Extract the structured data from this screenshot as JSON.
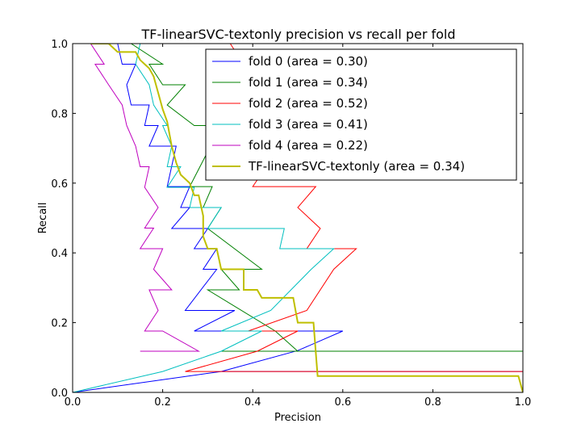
{
  "chart_data": {
    "type": "line",
    "title": "TF-linearSVC-textonly precision vs recall per fold",
    "xlabel": "Precision",
    "ylabel": "Recall",
    "xlim": [
      0.0,
      1.0
    ],
    "ylim": [
      0.0,
      1.0
    ],
    "xticks": [
      0.0,
      0.2,
      0.4,
      0.6,
      0.8,
      1.0
    ],
    "yticks": [
      0.0,
      0.2,
      0.4,
      0.6,
      0.8,
      1.0
    ],
    "xtick_labels": [
      "0.0",
      "0.2",
      "0.4",
      "0.6",
      "0.8",
      "1.0"
    ],
    "ytick_labels": [
      "0.0",
      "0.2",
      "0.4",
      "0.6",
      "0.8",
      "1.0"
    ],
    "grid": false,
    "legend_placement": "upper-right",
    "series": [
      {
        "name": "fold 0 (area = 0.30)",
        "color": "#0000ff",
        "stroke_width": 1,
        "points": [
          [
            0,
            0
          ],
          [
            0.33,
            0.06
          ],
          [
            1.0,
            0.06
          ],
          [
            1.0,
            0.06
          ],
          [
            0.33,
            0.06
          ],
          [
            0.5,
            0.12
          ],
          [
            0.6,
            0.176
          ],
          [
            0.27,
            0.176
          ],
          [
            0.36,
            0.235
          ],
          [
            0.25,
            0.235
          ],
          [
            0.32,
            0.353
          ],
          [
            0.29,
            0.353
          ],
          [
            0.32,
            0.412
          ],
          [
            0.27,
            0.412
          ],
          [
            0.3,
            0.47
          ],
          [
            0.22,
            0.47
          ],
          [
            0.26,
            0.53
          ],
          [
            0.24,
            0.53
          ],
          [
            0.26,
            0.59
          ],
          [
            0.21,
            0.59
          ],
          [
            0.23,
            0.706
          ],
          [
            0.17,
            0.706
          ],
          [
            0.19,
            0.765
          ],
          [
            0.16,
            0.765
          ],
          [
            0.17,
            0.824
          ],
          [
            0.13,
            0.824
          ],
          [
            0.12,
            0.882
          ],
          [
            0.14,
            0.941
          ],
          [
            0.11,
            0.941
          ],
          [
            0.1,
            1.0
          ],
          [
            0.05,
            1.0
          ]
        ]
      },
      {
        "name": "fold 1 (area = 0.34)",
        "color": "#008000",
        "stroke_width": 1,
        "points": [
          [
            0.33,
            0.118
          ],
          [
            1.0,
            0.118
          ],
          [
            0.33,
            0.118
          ],
          [
            0.5,
            0.118
          ],
          [
            0.45,
            0.176
          ],
          [
            0.3,
            0.294
          ],
          [
            0.37,
            0.294
          ],
          [
            0.33,
            0.353
          ],
          [
            0.42,
            0.353
          ],
          [
            0.3,
            0.47
          ],
          [
            0.33,
            0.53
          ],
          [
            0.29,
            0.53
          ],
          [
            0.31,
            0.59
          ],
          [
            0.26,
            0.59
          ],
          [
            0.33,
            0.765
          ],
          [
            0.27,
            0.765
          ],
          [
            0.21,
            0.824
          ],
          [
            0.25,
            0.882
          ],
          [
            0.2,
            0.882
          ],
          [
            0.17,
            0.941
          ],
          [
            0.2,
            0.941
          ],
          [
            0.13,
            1.0
          ]
        ]
      },
      {
        "name": "fold 2 (area = 0.52)",
        "color": "#ff0000",
        "stroke_width": 1,
        "points": [
          [
            0.25,
            0.06
          ],
          [
            1.0,
            0.06
          ],
          [
            0.25,
            0.06
          ],
          [
            0.41,
            0.118
          ],
          [
            0.5,
            0.176
          ],
          [
            0.39,
            0.176
          ],
          [
            0.52,
            0.235
          ],
          [
            0.58,
            0.353
          ],
          [
            0.63,
            0.412
          ],
          [
            0.52,
            0.412
          ],
          [
            0.55,
            0.47
          ],
          [
            0.5,
            0.53
          ],
          [
            0.54,
            0.59
          ],
          [
            0.4,
            0.59
          ],
          [
            0.43,
            0.647
          ],
          [
            0.37,
            0.647
          ],
          [
            0.36,
            0.706
          ],
          [
            0.4,
            0.765
          ],
          [
            0.37,
            0.824
          ],
          [
            0.42,
            0.882
          ],
          [
            0.38,
            0.941
          ],
          [
            0.35,
            1.0
          ]
        ]
      },
      {
        "name": "fold 3 (area = 0.41)",
        "color": "#00bfbf",
        "stroke_width": 1,
        "points": [
          [
            0,
            0
          ],
          [
            0.2,
            0.06
          ],
          [
            0.33,
            0.118
          ],
          [
            0.42,
            0.176
          ],
          [
            0.33,
            0.176
          ],
          [
            0.44,
            0.235
          ],
          [
            0.53,
            0.353
          ],
          [
            0.58,
            0.412
          ],
          [
            0.46,
            0.412
          ],
          [
            0.47,
            0.47
          ],
          [
            0.3,
            0.47
          ],
          [
            0.33,
            0.53
          ],
          [
            0.26,
            0.53
          ],
          [
            0.27,
            0.588
          ],
          [
            0.21,
            0.588
          ],
          [
            0.24,
            0.647
          ],
          [
            0.21,
            0.647
          ],
          [
            0.22,
            0.706
          ],
          [
            0.2,
            0.765
          ],
          [
            0.21,
            0.765
          ],
          [
            0.18,
            0.824
          ],
          [
            0.17,
            0.882
          ],
          [
            0.14,
            0.941
          ],
          [
            0.15,
            1.0
          ]
        ]
      },
      {
        "name": "fold 4 (area = 0.22)",
        "color": "#bf00bf",
        "stroke_width": 1,
        "points": [
          [
            0.15,
            0.118
          ],
          [
            0.28,
            0.118
          ],
          [
            0.2,
            0.176
          ],
          [
            0.16,
            0.176
          ],
          [
            0.19,
            0.235
          ],
          [
            0.17,
            0.294
          ],
          [
            0.22,
            0.294
          ],
          [
            0.18,
            0.353
          ],
          [
            0.2,
            0.412
          ],
          [
            0.15,
            0.412
          ],
          [
            0.18,
            0.471
          ],
          [
            0.16,
            0.471
          ],
          [
            0.19,
            0.53
          ],
          [
            0.16,
            0.588
          ],
          [
            0.17,
            0.647
          ],
          [
            0.15,
            0.647
          ],
          [
            0.14,
            0.706
          ],
          [
            0.12,
            0.765
          ],
          [
            0.11,
            0.824
          ],
          [
            0.08,
            0.882
          ],
          [
            0.05,
            0.941
          ],
          [
            0.07,
            0.941
          ],
          [
            0.04,
            1.0
          ]
        ]
      },
      {
        "name": "TF-linearSVC-textonly (area = 0.34)",
        "color": "#bfbf00",
        "stroke_width": 2,
        "points": [
          [
            1.0,
            0.0
          ],
          [
            0.99,
            0.047
          ],
          [
            0.544,
            0.047
          ],
          [
            0.535,
            0.2
          ],
          [
            0.5,
            0.2
          ],
          [
            0.49,
            0.271
          ],
          [
            0.42,
            0.271
          ],
          [
            0.41,
            0.294
          ],
          [
            0.38,
            0.294
          ],
          [
            0.38,
            0.353
          ],
          [
            0.33,
            0.353
          ],
          [
            0.32,
            0.412
          ],
          [
            0.3,
            0.412
          ],
          [
            0.29,
            0.447
          ],
          [
            0.29,
            0.506
          ],
          [
            0.28,
            0.565
          ],
          [
            0.27,
            0.565
          ],
          [
            0.26,
            0.6
          ],
          [
            0.24,
            0.624
          ],
          [
            0.23,
            0.659
          ],
          [
            0.22,
            0.706
          ],
          [
            0.21,
            0.776
          ],
          [
            0.2,
            0.812
          ],
          [
            0.19,
            0.859
          ],
          [
            0.18,
            0.906
          ],
          [
            0.17,
            0.929
          ],
          [
            0.16,
            0.941
          ],
          [
            0.15,
            0.953
          ],
          [
            0.14,
            0.976
          ],
          [
            0.1,
            0.976
          ],
          [
            0.08,
            1.0
          ],
          [
            0.04,
            1.0
          ]
        ]
      }
    ]
  }
}
